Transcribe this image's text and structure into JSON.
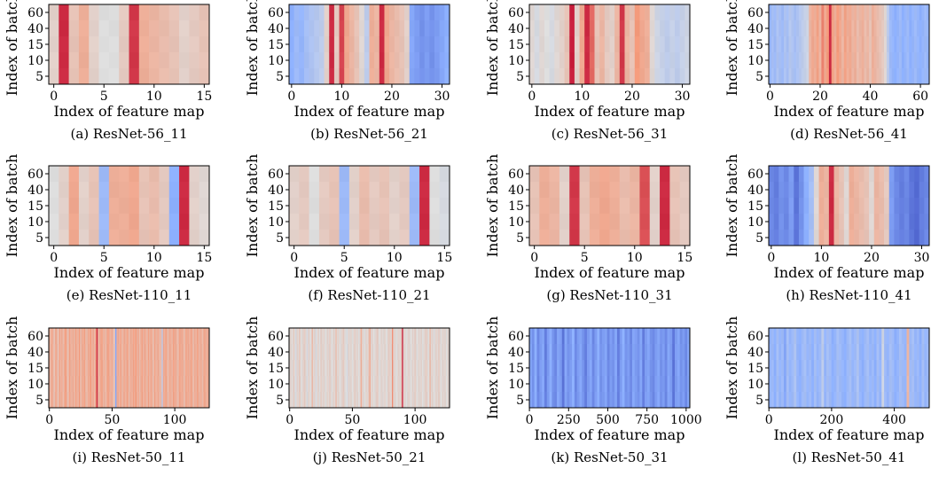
{
  "common": {
    "xlabel": "Index of feature map",
    "ylabel": "Index of batch",
    "yticks": [
      "5",
      "10",
      "15",
      "40",
      "60"
    ]
  },
  "chart_data": [
    {
      "type": "heatmap",
      "caption": "(a) ResNet-56_11",
      "xlabel": "Index of feature map",
      "ylabel": "Index of batch",
      "xlim": [
        -0.5,
        15.5
      ],
      "xticks": [
        0,
        5,
        10,
        15
      ],
      "yticks": [
        "5",
        "10",
        "15",
        "40",
        "60"
      ],
      "values": [
        0.1,
        0.95,
        0.2,
        0.35,
        0.1,
        0.0,
        0.0,
        0.15,
        0.9,
        0.35,
        0.3,
        0.25,
        0.2,
        0.1,
        0.15,
        0.2
      ]
    },
    {
      "type": "heatmap",
      "caption": "(b) ResNet-56_21",
      "xlabel": "Index of feature map",
      "ylabel": "Index of batch",
      "xlim": [
        -0.5,
        31.5
      ],
      "xticks": [
        0,
        10,
        20,
        30
      ],
      "yticks": [
        "5",
        "10",
        "15",
        "40",
        "60"
      ],
      "values": [
        -0.5,
        -0.4,
        -0.45,
        -0.35,
        -0.3,
        -0.25,
        -0.2,
        0.1,
        0.95,
        0.15,
        0.85,
        0.4,
        0.3,
        0.2,
        0.05,
        -0.2,
        0.35,
        0.3,
        0.95,
        0.4,
        0.3,
        0.25,
        0.2,
        0.1,
        -0.55,
        -0.6,
        -0.65,
        -0.6,
        -0.65,
        -0.6,
        -0.55,
        -0.5
      ]
    },
    {
      "type": "heatmap",
      "caption": "(c) ResNet-56_31",
      "xlabel": "Index of feature map",
      "ylabel": "Index of batch",
      "xlim": [
        -0.5,
        31.5
      ],
      "xticks": [
        0,
        10,
        20,
        30
      ],
      "yticks": [
        "5",
        "10",
        "15",
        "40",
        "60"
      ],
      "values": [
        0.05,
        -0.05,
        0.05,
        0.0,
        -0.05,
        0.05,
        0.1,
        0.2,
        1.0,
        0.1,
        0.4,
        0.95,
        0.7,
        0.2,
        0.3,
        0.15,
        0.1,
        0.3,
        0.9,
        0.3,
        0.2,
        0.5,
        0.4,
        0.35,
        0.05,
        -0.1,
        -0.15,
        -0.2,
        -0.15,
        -0.2,
        -0.15,
        -0.1
      ]
    },
    {
      "type": "heatmap",
      "caption": "(d) ResNet-56_41",
      "xlabel": "Index of feature map",
      "ylabel": "Index of batch",
      "xlim": [
        -0.5,
        63.5
      ],
      "xticks": [
        0,
        20,
        40,
        60
      ],
      "yticks": [
        "5",
        "10",
        "15",
        "40",
        "60"
      ],
      "values": [
        -0.45,
        -0.35,
        -0.4,
        -0.3,
        -0.35,
        -0.4,
        -0.3,
        -0.35,
        -0.25,
        -0.3,
        -0.35,
        -0.3,
        -0.25,
        -0.2,
        -0.15,
        -0.1,
        0.3,
        0.4,
        0.35,
        0.45,
        0.3,
        0.6,
        0.4,
        0.5,
        0.95,
        0.45,
        0.35,
        0.5,
        0.4,
        0.3,
        0.45,
        0.35,
        0.4,
        0.3,
        0.35,
        0.25,
        0.3,
        0.35,
        0.25,
        0.3,
        0.2,
        0.35,
        0.3,
        0.25,
        0.2,
        0.15,
        0.05,
        -0.2,
        -0.4,
        -0.45,
        -0.5,
        -0.45,
        -0.4,
        -0.5,
        -0.45,
        -0.4,
        -0.5,
        -0.45,
        -0.4,
        -0.45,
        -0.5,
        -0.45,
        -0.4,
        -0.45
      ]
    },
    {
      "type": "heatmap",
      "caption": "(e) ResNet-110_11",
      "xlabel": "Index of feature map",
      "ylabel": "Index of batch",
      "xlim": [
        -0.5,
        15.5
      ],
      "xticks": [
        0,
        5,
        10,
        15
      ],
      "yticks": [
        "5",
        "10",
        "15",
        "40",
        "60"
      ],
      "values": [
        0.0,
        0.1,
        0.4,
        0.1,
        0.2,
        -0.4,
        0.35,
        0.35,
        0.4,
        0.2,
        0.25,
        0.15,
        -0.5,
        0.95,
        0.1,
        0.05
      ]
    },
    {
      "type": "heatmap",
      "caption": "(f) ResNet-110_21",
      "xlabel": "Index of feature map",
      "ylabel": "Index of batch",
      "xlim": [
        -0.5,
        15.5
      ],
      "xticks": [
        0,
        5,
        10,
        15
      ],
      "yticks": [
        "5",
        "10",
        "15",
        "40",
        "60"
      ],
      "values": [
        0.1,
        0.15,
        0.0,
        0.15,
        0.2,
        -0.4,
        0.1,
        0.25,
        0.15,
        0.2,
        0.1,
        0.15,
        -0.4,
        0.95,
        0.0,
        -0.05
      ]
    },
    {
      "type": "heatmap",
      "caption": "(g) ResNet-110_31",
      "xlabel": "Index of feature map",
      "ylabel": "Index of batch",
      "xlim": [
        -0.5,
        15.5
      ],
      "xticks": [
        0,
        5,
        10,
        15
      ],
      "yticks": [
        "5",
        "10",
        "15",
        "40",
        "60"
      ],
      "values": [
        0.2,
        0.35,
        0.3,
        0.1,
        0.9,
        0.2,
        0.35,
        0.4,
        0.35,
        0.25,
        0.3,
        0.8,
        0.1,
        0.95,
        0.2,
        0.15
      ]
    },
    {
      "type": "heatmap",
      "caption": "(h) ResNet-110_41",
      "xlabel": "Index of feature map",
      "ylabel": "Index of batch",
      "xlim": [
        -0.5,
        31.5
      ],
      "xticks": [
        0,
        10,
        20,
        30
      ],
      "yticks": [
        "5",
        "10",
        "15",
        "40",
        "60"
      ],
      "values": [
        -0.7,
        -0.75,
        -0.65,
        -0.7,
        -0.6,
        -0.8,
        -0.65,
        -0.5,
        -0.35,
        0.05,
        0.35,
        0.3,
        0.95,
        0.3,
        0.2,
        0.05,
        0.35,
        0.3,
        0.25,
        0.2,
        0.05,
        0.3,
        0.25,
        0.15,
        -0.6,
        -0.7,
        -0.75,
        -0.7,
        -0.8,
        -0.85,
        -0.75,
        -0.7
      ]
    },
    {
      "type": "heatmap",
      "caption": "(i) ResNet-50_11",
      "xlabel": "Index of feature map",
      "ylabel": "Index of batch",
      "xlim": [
        -0.5,
        127.5
      ],
      "xticks": [
        0,
        50,
        100
      ],
      "yticks": [
        "5",
        "10",
        "15",
        "40",
        "60"
      ],
      "values": [
        0.35,
        0.25,
        0.45,
        0.3,
        0.2,
        0.4,
        0.35,
        0.15,
        0.45,
        0.3,
        0.4,
        0.25,
        0.35,
        0.5,
        0.3,
        0.2,
        0.45,
        0.35,
        0.3,
        0.4,
        0.25,
        0.45,
        0.35,
        0.3,
        0.5,
        0.2,
        0.4,
        0.35,
        0.45,
        0.3,
        0.25,
        0.4,
        0.35,
        0.5,
        0.3,
        0.4,
        0.25,
        0.45,
        0.95,
        0.35,
        0.3,
        0.4,
        0.45,
        0.3,
        0.35,
        0.25,
        0.4,
        0.45,
        0.35,
        0.3,
        0.4,
        0.25,
        0.2,
        -0.55,
        0.35,
        0.4,
        0.3,
        0.45,
        0.25,
        0.35,
        0.4,
        0.3,
        0.45,
        0.35,
        0.25,
        0.4,
        0.3,
        0.45,
        0.35,
        0.5,
        0.3,
        0.4,
        0.25,
        0.35,
        0.45,
        0.3,
        0.4,
        0.35,
        0.25,
        0.45,
        0.3,
        0.4,
        0.35,
        0.2,
        0.45,
        0.3,
        0.35,
        0.4,
        0.25,
        0.3,
        -0.2,
        0.4,
        0.35,
        0.45,
        0.3,
        0.25,
        0.4,
        0.35,
        0.3,
        0.45,
        0.35,
        0.4,
        0.25,
        0.3,
        0.45,
        0.35,
        0.4,
        0.3,
        0.25,
        0.45,
        0.35,
        0.4,
        0.3,
        0.45,
        0.35,
        0.25,
        0.4,
        0.3,
        0.45,
        0.35,
        0.3,
        0.4,
        0.25,
        0.35,
        0.45,
        0.3,
        0.4,
        0.35
      ]
    },
    {
      "type": "heatmap",
      "caption": "(j) ResNet-50_21",
      "xlabel": "Index of feature map",
      "ylabel": "Index of batch",
      "xlim": [
        -0.5,
        127.5
      ],
      "xticks": [
        0,
        50,
        100
      ],
      "yticks": [
        "5",
        "10",
        "15",
        "40",
        "60"
      ],
      "values": [
        0.05,
        0.1,
        0.0,
        0.15,
        0.05,
        -0.05,
        0.1,
        0.05,
        0.2,
        0.0,
        0.05,
        0.1,
        0.15,
        0.05,
        -0.05,
        0.1,
        0.05,
        0.0,
        0.3,
        0.05,
        0.1,
        -0.05,
        0.05,
        0.1,
        0.0,
        0.15,
        0.05,
        0.1,
        0.05,
        0.0,
        0.1,
        0.05,
        0.15,
        0.05,
        0.0,
        0.1,
        0.05,
        0.25,
        0.05,
        0.1,
        0.0,
        0.05,
        0.1,
        0.15,
        0.05,
        0.0,
        -0.05,
        0.1,
        0.05,
        0.1,
        0.0,
        0.05,
        0.15,
        0.05,
        0.1,
        0.0,
        0.05,
        0.35,
        0.1,
        0.05,
        0.0,
        0.1,
        0.05,
        0.15,
        0.4,
        0.05,
        0.1,
        0.0,
        0.05,
        0.1,
        0.15,
        0.05,
        0.0,
        0.1,
        0.05,
        0.05,
        0.1,
        0.0,
        0.05,
        0.15,
        0.1,
        0.05,
        0.55,
        0.05,
        0.1,
        0.0,
        0.05,
        0.1,
        0.05,
        0.15,
        0.95,
        0.05,
        0.1,
        0.0,
        0.05,
        0.1,
        0.05,
        0.0,
        0.1,
        0.05,
        0.15,
        0.05,
        0.0,
        0.1,
        0.05,
        0.1,
        0.0,
        0.05,
        0.1,
        0.15,
        0.05,
        0.0,
        0.3,
        0.05,
        0.1,
        0.0,
        0.05,
        0.1,
        0.05,
        0.15,
        0.05,
        0.0,
        0.1,
        0.05,
        0.1,
        0.0,
        0.05,
        0.1
      ]
    },
    {
      "type": "heatmap",
      "caption": "(k) ResNet-50_31",
      "xlabel": "Index of feature map",
      "ylabel": "Index of batch",
      "xlim": [
        -0.5,
        1023.5
      ],
      "xticks": [
        0,
        250,
        500,
        750,
        1000
      ],
      "yticks": [
        "5",
        "10",
        "15",
        "40",
        "60"
      ],
      "values": [
        -0.55,
        -0.65,
        -0.5,
        -0.7,
        -0.6,
        -0.55,
        -0.75,
        -0.6,
        -0.5,
        -0.65,
        -0.7,
        -0.55,
        -0.6,
        -0.8,
        -0.55,
        -0.65,
        -0.6,
        -0.5,
        -0.7,
        -0.6,
        -0.55,
        -0.65,
        -0.75,
        -0.6,
        -0.55,
        -0.7,
        -0.6,
        -0.5,
        -0.65,
        -0.6,
        -0.55,
        -0.7,
        -0.6,
        -0.65,
        -0.55,
        -0.75,
        -0.6,
        -0.5,
        -0.65,
        -0.6,
        -0.7,
        -0.55,
        -0.6,
        -0.65,
        -0.55,
        -0.75,
        -0.6,
        -0.55,
        -0.65,
        -0.7,
        -0.6,
        -0.55,
        -0.65,
        -0.6,
        -0.7,
        -0.55,
        -0.6,
        -0.8,
        -0.6,
        -0.55,
        -0.65,
        -0.6,
        -0.7,
        -0.55
      ]
    },
    {
      "type": "heatmap",
      "caption": "(l) ResNet-50_41",
      "xlabel": "Index of feature map",
      "ylabel": "Index of batch",
      "xlim": [
        -0.5,
        511.5
      ],
      "xticks": [
        0,
        200,
        400
      ],
      "yticks": [
        "5",
        "10",
        "15",
        "40",
        "60"
      ],
      "values": [
        -0.45,
        -0.4,
        -0.5,
        -0.35,
        -0.45,
        -0.4,
        -0.55,
        -0.35,
        -0.45,
        -0.4,
        -0.3,
        -0.45,
        -0.5,
        -0.4,
        -0.35,
        -0.45,
        -0.4,
        -0.5,
        -0.35,
        -0.45,
        -0.4,
        -0.2,
        -0.45,
        -0.35,
        -0.4,
        -0.5,
        -0.45,
        -0.35,
        -0.4,
        -0.45,
        -0.5,
        -0.4,
        -0.35,
        -0.45,
        -0.4,
        -0.3,
        -0.45,
        -0.5,
        -0.4,
        -0.35,
        -0.45,
        -0.4,
        -0.5,
        -0.35,
        -0.45,
        -0.1,
        -0.4,
        -0.45,
        -0.35,
        -0.4,
        -0.5,
        -0.45,
        -0.35,
        -0.4,
        -0.45,
        0.3,
        -0.4,
        -0.35,
        -0.45,
        -0.4,
        -0.5,
        -0.35,
        -0.45,
        -0.4
      ]
    }
  ]
}
